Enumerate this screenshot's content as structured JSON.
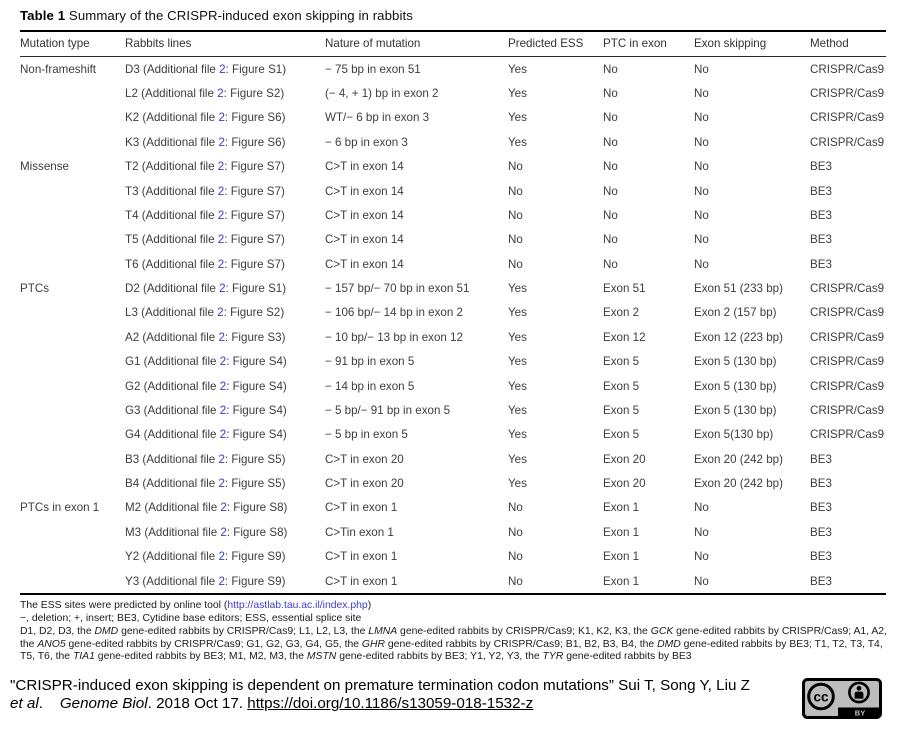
{
  "title": {
    "bold": "Table 1",
    "rest": " Summary of the CRISPR-induced exon skipping in rabbits"
  },
  "colors": {
    "link_blue": "#3c3ccd",
    "table_text": "#3d3d3d"
  },
  "table": {
    "columns": [
      "Mutation type",
      "Rabbits lines",
      "Nature of mutation",
      "Predicted ESS",
      "PTC in exon",
      "Exon skipping",
      "Method"
    ],
    "rows": [
      {
        "group": "Non-frameshift",
        "line_pre": "D3 (Additional file ",
        "line_link": "2",
        "line_post": ": Figure S1)",
        "nature": "− 75 bp in exon 51",
        "ess": "Yes",
        "ptc": "No",
        "skip": "No",
        "method": "CRISPR/Cas9"
      },
      {
        "group": "",
        "line_pre": "L2 (Additional file ",
        "line_link": "2",
        "line_post": ": Figure S2)",
        "nature": "(− 4, + 1) bp in exon 2",
        "ess": "Yes",
        "ptc": "No",
        "skip": "No",
        "method": "CRISPR/Cas9"
      },
      {
        "group": "",
        "line_pre": "K2 (Additional file ",
        "line_link": "2",
        "line_post": ": Figure S6)",
        "nature": "WT/− 6 bp in exon 3",
        "ess": "Yes",
        "ptc": "No",
        "skip": "No",
        "method": "CRISPR/Cas9"
      },
      {
        "group": "",
        "line_pre": "K3 (Additional file ",
        "line_link": "2",
        "line_post": ": Figure S6)",
        "nature": "− 6 bp in exon 3",
        "ess": "Yes",
        "ptc": "No",
        "skip": "No",
        "method": "CRISPR/Cas9"
      },
      {
        "group": "Missense",
        "line_pre": "T2 (Additional file ",
        "line_link": "2",
        "line_post": ": Figure S7)",
        "nature": "C>T in exon 14",
        "ess": "No",
        "ptc": "No",
        "skip": "No",
        "method": "BE3"
      },
      {
        "group": "",
        "line_pre": "T3 (Additional file ",
        "line_link": "2",
        "line_post": ": Figure S7)",
        "nature": "C>T in exon 14",
        "ess": "No",
        "ptc": "No",
        "skip": "No",
        "method": "BE3"
      },
      {
        "group": "",
        "line_pre": "T4 (Additional file ",
        "line_link": "2",
        "line_post": ": Figure S7)",
        "nature": "C>T in exon 14",
        "ess": "No",
        "ptc": "No",
        "skip": "No",
        "method": "BE3"
      },
      {
        "group": "",
        "line_pre": "T5 (Additional file ",
        "line_link": "2",
        "line_post": ": Figure S7)",
        "nature": "C>T in exon 14",
        "ess": "No",
        "ptc": "No",
        "skip": "No",
        "method": "BE3"
      },
      {
        "group": "",
        "line_pre": "T6 (Additional file ",
        "line_link": "2",
        "line_post": ": Figure S7)",
        "nature": "C>T in exon 14",
        "ess": "No",
        "ptc": "No",
        "skip": "No",
        "method": "BE3"
      },
      {
        "group": "PTCs",
        "line_pre": "D2 (Additional file ",
        "line_link": "2",
        "line_post": ": Figure S1)",
        "nature": "− 157 bp/− 70 bp in exon 51",
        "ess": "Yes",
        "ptc": "Exon 51",
        "skip": "Exon 51 (233 bp)",
        "method": "CRISPR/Cas9"
      },
      {
        "group": "",
        "line_pre": "L3 (Additional file ",
        "line_link": "2",
        "line_post": ": Figure S2)",
        "nature": "− 106 bp/− 14 bp in exon 2",
        "ess": "Yes",
        "ptc": "Exon 2",
        "skip": "Exon 2 (157 bp)",
        "method": "CRISPR/Cas9"
      },
      {
        "group": "",
        "line_pre": "A2 (Additional file ",
        "line_link": "2",
        "line_post": ": Figure S3)",
        "nature": "− 10 bp/− 13 bp in exon 12",
        "ess": "Yes",
        "ptc": "Exon 12",
        "skip": "Exon 12 (223 bp)",
        "method": "CRISPR/Cas9"
      },
      {
        "group": "",
        "line_pre": "G1 (Additional file ",
        "line_link": "2",
        "line_post": ": Figure S4)",
        "nature": "− 91 bp in exon 5",
        "ess": "Yes",
        "ptc": "Exon 5",
        "skip": "Exon 5 (130 bp)",
        "method": "CRISPR/Cas9"
      },
      {
        "group": "",
        "line_pre": "G2 (Additional file ",
        "line_link": "2",
        "line_post": ": Figure S4)",
        "nature": "− 14 bp in exon 5",
        "ess": "Yes",
        "ptc": "Exon 5",
        "skip": "Exon 5 (130 bp)",
        "method": "CRISPR/Cas9"
      },
      {
        "group": "",
        "line_pre": "G3 (Additional file ",
        "line_link": "2",
        "line_post": ": Figure S4)",
        "nature": "− 5 bp/− 91 bp in exon 5",
        "ess": "Yes",
        "ptc": "Exon 5",
        "skip": "Exon 5 (130 bp)",
        "method": "CRISPR/Cas9"
      },
      {
        "group": "",
        "line_pre": "G4 (Additional file ",
        "line_link": "2",
        "line_post": ": Figure S4)",
        "nature": "− 5 bp in exon 5",
        "ess": "Yes",
        "ptc": "Exon 5",
        "skip": "Exon 5(130 bp)",
        "method": "CRISPR/Cas9"
      },
      {
        "group": "",
        "line_pre": "B3 (Additional file ",
        "line_link": "2",
        "line_post": ": Figure S5)",
        "nature": "C>T in exon 20",
        "ess": "Yes",
        "ptc": "Exon 20",
        "skip": "Exon 20 (242 bp)",
        "method": "BE3"
      },
      {
        "group": "",
        "line_pre": "B4 (Additional file ",
        "line_link": "2",
        "line_post": ": Figure S5)",
        "nature": "C>T in exon 20",
        "ess": "Yes",
        "ptc": "Exon 20",
        "skip": "Exon 20 (242 bp)",
        "method": "BE3"
      },
      {
        "group": "PTCs in exon 1",
        "line_pre": "M2 (Additional file ",
        "line_link": "2",
        "line_post": ": Figure S8)",
        "nature": "C>T in exon 1",
        "ess": "No",
        "ptc": "Exon 1",
        "skip": "No",
        "method": "BE3"
      },
      {
        "group": "",
        "line_pre": "M3 (Additional file ",
        "line_link": "2",
        "line_post": ": Figure S8)",
        "nature": "C>Tin exon 1",
        "ess": "No",
        "ptc": "Exon 1",
        "skip": "No",
        "method": "BE3"
      },
      {
        "group": "",
        "line_pre": "Y2 (Additional file ",
        "line_link": "2",
        "line_post": ": Figure S9)",
        "nature": "C>T in exon 1",
        "ess": "No",
        "ptc": "Exon 1",
        "skip": "No",
        "method": "BE3"
      },
      {
        "group": "",
        "line_pre": "Y3 (Additional file ",
        "line_link": "2",
        "line_post": ": Figure S9)",
        "nature": "C>T in exon 1",
        "ess": "No",
        "ptc": "Exon 1",
        "skip": "No",
        "method": "BE3"
      }
    ]
  },
  "footnotes": {
    "line1_pre": "The ESS sites were predicted by online tool (",
    "line1_link": "http://astlab.tau.ac.il/index.php",
    "line1_post": ")",
    "line2": "−, deletion; +, insert; BE3, Cytidine base editors; ESS, essential splice site",
    "gene_lines": [
      {
        "t": "D1, D2, D3, the "
      },
      {
        "t": "DMD",
        "i": true
      },
      {
        "t": " gene-edited rabbits by CRISPR/Cas9; L1, L2, L3, the "
      },
      {
        "t": "LMNA",
        "i": true
      },
      {
        "t": " gene-edited rabbits by CRISPR/Cas9; K1, K2, K3, the "
      },
      {
        "t": "GCK",
        "i": true
      },
      {
        "t": " gene-edited rabbits by CRISPR/Cas9; A1, A2, the "
      },
      {
        "t": "ANO5",
        "i": true
      },
      {
        "t": " gene-edited rabbits by CRISPR/Cas9; G1, G2, G3, G4, G5, the "
      },
      {
        "t": "GHR",
        "i": true
      },
      {
        "t": " gene-edited rabbits by CRISPR/Cas9; B1, B2, B3, B4, the "
      },
      {
        "t": "DMD",
        "i": true
      },
      {
        "t": " gene-edited rabbits by BE3; T1, T2, T3, T4, T5, T6, the "
      },
      {
        "t": "TIA1",
        "i": true
      },
      {
        "t": " gene-edited rabbits by BE3; M1, M2, M3, the "
      },
      {
        "t": "MSTN",
        "i": true
      },
      {
        "t": " gene-edited rabbits by BE3; Y1, Y2, Y3, the "
      },
      {
        "t": "TYR",
        "i": true
      },
      {
        "t": " gene-edited rabbits by BE3"
      }
    ]
  },
  "citation": {
    "segments": [
      {
        "t": "\"CRISPR-induced exon skipping is dependent on premature termination codon mutations” Sui T, Song Y, Liu Z "
      },
      {
        "t": "et al",
        "i": true
      },
      {
        "t": ".    "
      },
      {
        "t": "Genome Biol",
        "i": true
      },
      {
        "t": ". 2018 Oct 17. "
      },
      {
        "t": "https://doi.org/10.1186/s13059-018-1532-z",
        "link": true
      }
    ]
  },
  "cc_badge": {
    "cc_label": "cc",
    "by_label": "BY"
  }
}
